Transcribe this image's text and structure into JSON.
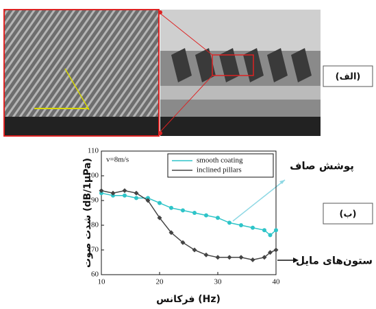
{
  "chart_data": {
    "type": "line",
    "annotation": "v=8m/s",
    "xlabel": "فرکانس (Hz)",
    "ylabel": "شدت صوت (dB/1μPa)",
    "x": [
      10,
      12,
      14,
      16,
      18,
      20,
      22,
      24,
      26,
      28,
      30,
      32,
      34,
      36,
      38,
      39,
      40
    ],
    "series": [
      {
        "name": "smooth coating",
        "color": "#2ec4c8",
        "marker": "circle",
        "values": [
          93,
          92,
          92,
          91,
          91,
          89,
          87,
          86,
          85,
          84,
          83,
          81,
          80,
          79,
          78,
          76,
          78
        ]
      },
      {
        "name": "inclined pillars",
        "color": "#444444",
        "marker": "diamond",
        "values": [
          94,
          93,
          94,
          93,
          90,
          83,
          77,
          73,
          70,
          68,
          67,
          67,
          67,
          66,
          67,
          69,
          70
        ]
      }
    ],
    "xlim": [
      10,
      40
    ],
    "xticks": [
      10,
      20,
      30,
      40
    ],
    "ylim": [
      60,
      110
    ],
    "yticks": [
      60,
      70,
      80,
      90,
      100,
      110
    ],
    "legend": "upper right"
  },
  "panel_labels": [
    "(الف)",
    "(ب)"
  ],
  "callouts": [
    "پوشش صاف",
    "ستون‌های مایل"
  ]
}
